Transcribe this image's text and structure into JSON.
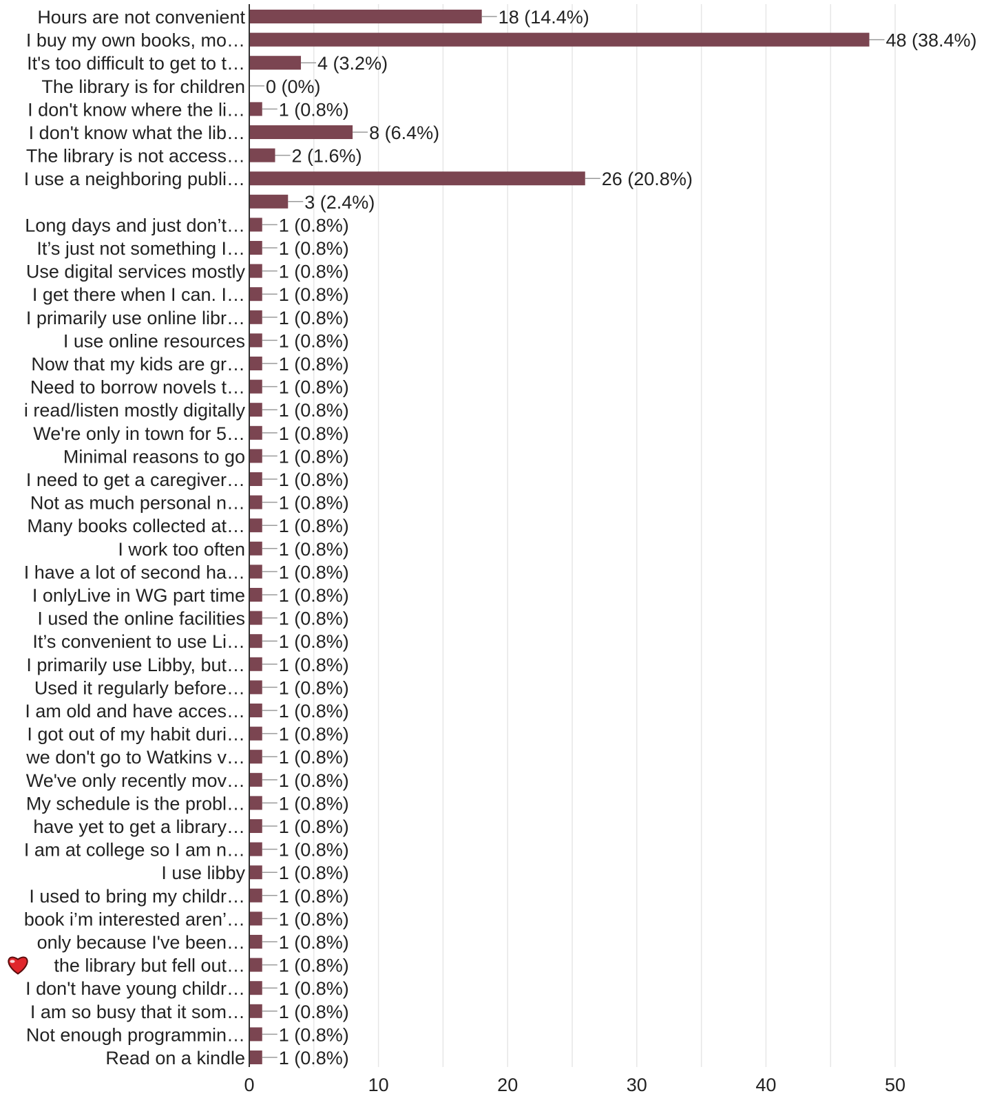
{
  "chart_data": {
    "type": "bar",
    "orientation": "horizontal",
    "bar_color": "#7b4551",
    "grid": true,
    "xlim": [
      0,
      50
    ],
    "xticks": [
      0,
      10,
      20,
      30,
      40,
      50
    ],
    "title": "",
    "xlabel": "",
    "ylabel": "",
    "categories": [
      "Hours are not convenient",
      "I buy my own books, mo…",
      "It's too difficult to get to t…",
      "The library is for children",
      "I don't know where the li…",
      "I don't know what the lib…",
      "The library is not access…",
      "I use a neighboring publi…",
      "",
      "Long days and just don’t…",
      "It’s just not something I…",
      "Use digital services mostly",
      "I get there when I can. I…",
      "I primarily use online libr…",
      "I use online resources",
      "Now that my kids are gr…",
      "Need to borrow novels t…",
      "i read/listen mostly digitally",
      "We're only in town for 5…",
      "Minimal reasons to go",
      "I need to get a caregiver…",
      "Not as much personal n…",
      "Many books collected at…",
      "I work too often",
      "I have a lot of second ha…",
      "I onlyLive in WG part time",
      "I used the online facilities",
      "It’s convenient to use Li…",
      "I primarily use Libby, but…",
      "Used it regularly before…",
      "I am old and have acces…",
      "I got out of my habit duri…",
      "we don't go to Watkins v…",
      "We've only recently mov…",
      "My schedule is the probl…",
      "have yet to get a library…",
      "I am at college so I am n…",
      "I use libby",
      "I used to bring my childr…",
      "book i’m interested aren’…",
      "only because I've been…",
      "the library but fell out…",
      "I don't have young childr…",
      "I am so busy that it som…",
      "Not enough programmin…",
      "Read on a kindle"
    ],
    "heart_icon_index": 41,
    "heart_icon": "heart-icon",
    "values": [
      18,
      48,
      4,
      0,
      1,
      8,
      2,
      26,
      3,
      1,
      1,
      1,
      1,
      1,
      1,
      1,
      1,
      1,
      1,
      1,
      1,
      1,
      1,
      1,
      1,
      1,
      1,
      1,
      1,
      1,
      1,
      1,
      1,
      1,
      1,
      1,
      1,
      1,
      1,
      1,
      1,
      1,
      1,
      1,
      1,
      1
    ],
    "value_labels": [
      "18 (14.4%)",
      "48 (38.4%)",
      "4 (3.2%)",
      "0 (0%)",
      "1 (0.8%)",
      "8 (6.4%)",
      "2 (1.6%)",
      "26 (20.8%)",
      "3 (2.4%)",
      "1 (0.8%)",
      "1 (0.8%)",
      "1 (0.8%)",
      "1 (0.8%)",
      "1 (0.8%)",
      "1 (0.8%)",
      "1 (0.8%)",
      "1 (0.8%)",
      "1 (0.8%)",
      "1 (0.8%)",
      "1 (0.8%)",
      "1 (0.8%)",
      "1 (0.8%)",
      "1 (0.8%)",
      "1 (0.8%)",
      "1 (0.8%)",
      "1 (0.8%)",
      "1 (0.8%)",
      "1 (0.8%)",
      "1 (0.8%)",
      "1 (0.8%)",
      "1 (0.8%)",
      "1 (0.8%)",
      "1 (0.8%)",
      "1 (0.8%)",
      "1 (0.8%)",
      "1 (0.8%)",
      "1 (0.8%)",
      "1 (0.8%)",
      "1 (0.8%)",
      "1 (0.8%)",
      "1 (0.8%)",
      "1 (0.8%)",
      "1 (0.8%)",
      "1 (0.8%)",
      "1 (0.8%)",
      "1 (0.8%)"
    ]
  }
}
